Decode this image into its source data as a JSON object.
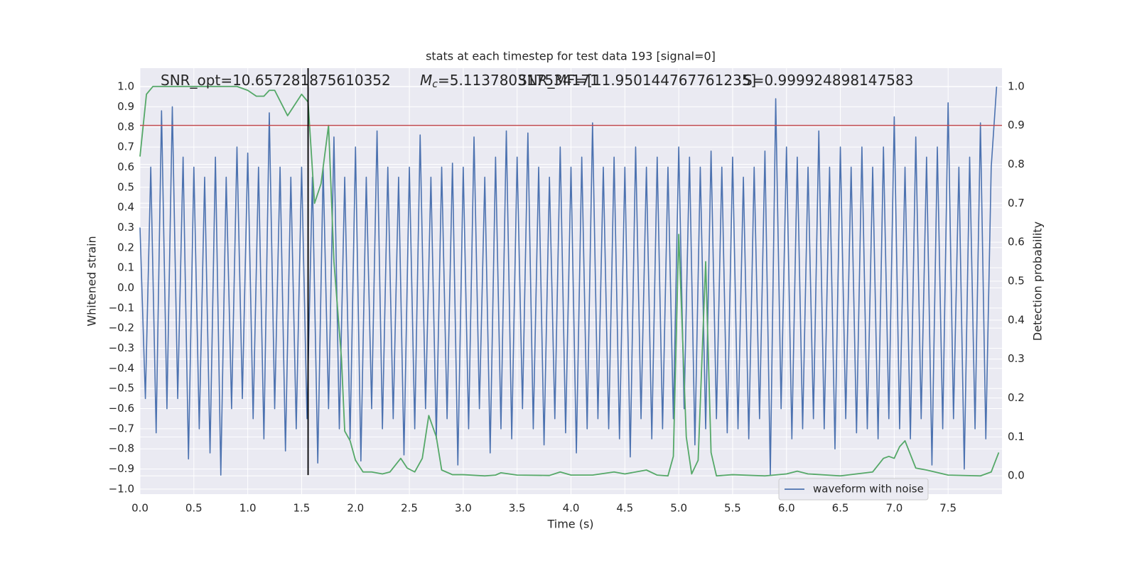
{
  "chart_data": {
    "type": "line",
    "title": "stats at each timestep for test data 193 [signal=0]",
    "x_label": "Time (s)",
    "y_label": "Whitened strain",
    "y2_label": "Detection probability",
    "annotations": [
      {
        "text": "SNR_opt=10.657281875610352"
      },
      {
        "symbol": "M",
        "subscript": "c",
        "text": "=5.113780317534171"
      },
      {
        "text": "SNR_MF=[11.950144767761235]"
      },
      {
        "text": "S=0.999924898147583"
      }
    ],
    "xlim": [
      0,
      8
    ],
    "ylim": [
      -1.025,
      1.092
    ],
    "y2lim": [
      -0.047,
      1.047
    ],
    "xticks": [
      {
        "value": 0,
        "label": "0.0"
      },
      0.5,
      {
        "value": 1,
        "label": "1.0"
      },
      1.5,
      {
        "value": 2,
        "label": "2.0"
      },
      2.5,
      {
        "value": 3,
        "label": "3.0"
      },
      3.5,
      {
        "value": 4,
        "label": "4.0"
      },
      4.5,
      {
        "value": 5,
        "label": "5.0"
      },
      5.5,
      {
        "value": 6,
        "label": "6.0"
      },
      6.5,
      {
        "value": 7,
        "label": "7.0"
      },
      7.5
    ],
    "yticks": [
      {
        "value": -1,
        "label": "−1.0"
      },
      {
        "value": -0.9,
        "label": "−0.9"
      },
      {
        "value": -0.8,
        "label": "−0.8"
      },
      {
        "value": -0.7,
        "label": "−0.7"
      },
      {
        "value": -0.6,
        "label": "−0.6"
      },
      {
        "value": -0.5,
        "label": "−0.5"
      },
      {
        "value": -0.4,
        "label": "−0.4"
      },
      {
        "value": -0.3,
        "label": "−0.3"
      },
      {
        "value": -0.2,
        "label": "−0.2"
      },
      {
        "value": -0.1,
        "label": "−0.1"
      },
      {
        "value": 0,
        "label": "0.0"
      },
      0.1,
      0.2,
      0.3,
      0.4,
      0.5,
      0.6,
      0.7,
      0.8,
      0.9,
      {
        "value": 1,
        "label": "1.0"
      }
    ],
    "y2ticks": [
      {
        "value": 0,
        "label": "0.0"
      },
      0.1,
      0.2,
      0.3,
      0.4,
      0.5,
      0.6,
      0.7,
      0.8,
      0.9,
      {
        "value": 1,
        "label": "1.0"
      }
    ],
    "grid": true,
    "legend": "lower right",
    "hline": {
      "value": 0.9,
      "axis": "y2",
      "color": "#c44e52"
    },
    "vline": {
      "x": 1.56,
      "ymin": -0.93,
      "color": "#000000"
    },
    "series": [
      {
        "name": "waveform with noise",
        "color": "#4c72b0",
        "axis": "y",
        "x": [
          0,
          0.05,
          0.1,
          0.15,
          0.2,
          0.25,
          0.3,
          0.35,
          0.4,
          0.45,
          0.5,
          0.55,
          0.6,
          0.65,
          0.7,
          0.75,
          0.8,
          0.85,
          0.9,
          0.95,
          1,
          1.05,
          1.1,
          1.15,
          1.2,
          1.25,
          1.3,
          1.35,
          1.4,
          1.45,
          1.5,
          1.55,
          1.6,
          1.65,
          1.7,
          1.75,
          1.8,
          1.85,
          1.9,
          1.95,
          2,
          2.05,
          2.1,
          2.15,
          2.2,
          2.25,
          2.3,
          2.35,
          2.4,
          2.45,
          2.5,
          2.55,
          2.6,
          2.65,
          2.7,
          2.75,
          2.8,
          2.85,
          2.9,
          2.95,
          3,
          3.05,
          3.1,
          3.15,
          3.2,
          3.25,
          3.3,
          3.35,
          3.4,
          3.45,
          3.5,
          3.55,
          3.6,
          3.65,
          3.7,
          3.75,
          3.8,
          3.85,
          3.9,
          3.95,
          4,
          4.05,
          4.1,
          4.15,
          4.2,
          4.25,
          4.3,
          4.35,
          4.4,
          4.45,
          4.5,
          4.55,
          4.6,
          4.65,
          4.7,
          4.75,
          4.8,
          4.85,
          4.9,
          4.95,
          5,
          5.05,
          5.1,
          5.15,
          5.2,
          5.25,
          5.3,
          5.35,
          5.4,
          5.45,
          5.5,
          5.55,
          5.6,
          5.65,
          5.7,
          5.75,
          5.8,
          5.85,
          5.9,
          5.95,
          6,
          6.05,
          6.1,
          6.15,
          6.2,
          6.25,
          6.3,
          6.35,
          6.4,
          6.45,
          6.5,
          6.55,
          6.6,
          6.65,
          6.7,
          6.75,
          6.8,
          6.85,
          6.9,
          6.95,
          7,
          7.05,
          7.1,
          7.15,
          7.2,
          7.25,
          7.3,
          7.35,
          7.4,
          7.45,
          7.5,
          7.55,
          7.6,
          7.65,
          7.7,
          7.75,
          7.8,
          7.85,
          7.9,
          7.95
        ],
        "values": [
          0.3,
          -0.55,
          0.6,
          -0.72,
          0.88,
          -0.6,
          0.9,
          -0.55,
          0.65,
          -0.85,
          0.6,
          -0.7,
          0.55,
          -0.82,
          0.65,
          -0.93,
          0.55,
          -0.6,
          0.7,
          -0.55,
          0.67,
          -0.65,
          0.6,
          -0.75,
          0.87,
          -0.6,
          0.6,
          -0.81,
          0.55,
          -0.7,
          0.6,
          -0.65,
          0.55,
          -0.87,
          0.6,
          -0.6,
          0.75,
          -0.7,
          0.55,
          -0.75,
          0.7,
          -0.86,
          0.55,
          -0.6,
          0.78,
          -0.7,
          0.6,
          -0.65,
          0.55,
          -0.83,
          0.6,
          -0.7,
          0.76,
          -0.6,
          0.55,
          -0.75,
          0.6,
          -0.65,
          0.62,
          -0.88,
          0.6,
          -0.7,
          0.75,
          -0.6,
          0.55,
          -0.82,
          0.65,
          -0.7,
          0.78,
          -0.75,
          0.65,
          -0.6,
          0.77,
          -0.7,
          0.6,
          -0.78,
          0.55,
          -0.65,
          0.7,
          -0.72,
          0.6,
          -0.82,
          0.65,
          -0.7,
          0.82,
          -0.65,
          0.6,
          -0.7,
          0.65,
          -0.75,
          0.6,
          -0.84,
          0.7,
          -0.65,
          0.6,
          -0.75,
          0.65,
          -0.7,
          0.6,
          -0.65,
          0.7,
          -0.6,
          0.65,
          -0.78,
          0.6,
          -0.7,
          0.68,
          -0.65,
          0.6,
          -0.72,
          0.65,
          -0.7,
          0.55,
          -0.75,
          0.6,
          -0.65,
          0.68,
          -0.93,
          0.94,
          -0.6,
          0.7,
          -0.75,
          0.65,
          -0.7,
          0.6,
          -0.65,
          0.78,
          -0.7,
          0.6,
          -0.8,
          0.7,
          -0.65,
          0.6,
          -0.72,
          0.7,
          -0.7,
          0.6,
          -0.75,
          0.7,
          -0.65,
          0.85,
          -0.7,
          0.6,
          -0.75,
          0.75,
          -0.65,
          0.65,
          -0.88,
          0.7,
          -0.7,
          0.92,
          -0.65,
          0.6,
          -0.9,
          0.65,
          -0.7,
          0.82,
          -0.75,
          0.6,
          1.0
        ]
      },
      {
        "color": "#55a868",
        "axis": "y2",
        "x": [
          0,
          0.06,
          0.12,
          0.9,
          1,
          1.08,
          1.15,
          1.2,
          1.25,
          1.37,
          1.5,
          1.56,
          1.62,
          1.68,
          1.75,
          1.8,
          1.87,
          1.9,
          1.95,
          2,
          2.07,
          2.15,
          2.25,
          2.32,
          2.42,
          2.48,
          2.55,
          2.62,
          2.68,
          2.75,
          2.8,
          2.9,
          3,
          3.2,
          3.3,
          3.35,
          3.5,
          3.8,
          3.9,
          4,
          4.2,
          4.4,
          4.5,
          4.7,
          4.8,
          4.9,
          4.95,
          5,
          5.07,
          5.12,
          5.18,
          5.25,
          5.3,
          5.35,
          5.5,
          5.8,
          6,
          6.1,
          6.2,
          6.5,
          6.8,
          6.9,
          6.95,
          7,
          7.05,
          7.1,
          7.15,
          7.2,
          7.3,
          7.5,
          7.8,
          7.9,
          7.97
        ],
        "values": [
          0.82,
          0.98,
          1,
          1,
          0.99,
          0.975,
          0.975,
          0.99,
          0.99,
          0.925,
          0.98,
          0.96,
          0.7,
          0.75,
          0.9,
          0.55,
          0.3,
          0.115,
          0.09,
          0.04,
          0.01,
          0.01,
          0.005,
          0.01,
          0.045,
          0.02,
          0.01,
          0.045,
          0.155,
          0.1,
          0.015,
          0.003,
          0.003,
          0,
          0.002,
          0.008,
          0.002,
          0.001,
          0.01,
          0.002,
          0.002,
          0.01,
          0.005,
          0.015,
          0.002,
          0,
          0.05,
          0.62,
          0.1,
          0.005,
          0.04,
          0.55,
          0.06,
          0,
          0.003,
          0,
          0.005,
          0.012,
          0.005,
          0,
          0.01,
          0.045,
          0.05,
          0.045,
          0.075,
          0.09,
          0.055,
          0.02,
          0.015,
          0.002,
          0,
          0.01,
          0.06
        ]
      }
    ]
  }
}
